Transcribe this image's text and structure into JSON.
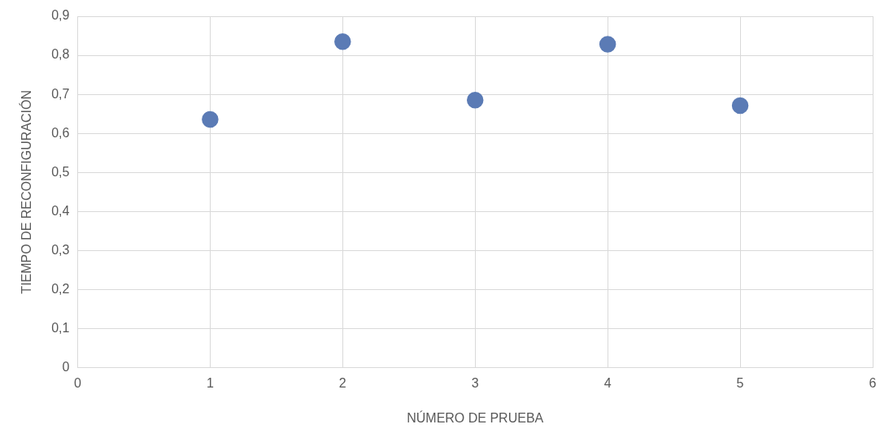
{
  "chart_data": {
    "type": "scatter",
    "xlabel": "NÚMERO DE PRUEBA",
    "ylabel": "TIEMPO DE RECONFIGURACIÓN",
    "x": [
      1,
      2,
      3,
      4,
      5
    ],
    "series": [
      {
        "color": "#5b7bb5",
        "values": [
          0.636,
          0.835,
          0.685,
          0.828,
          0.671
        ]
      }
    ],
    "xlim": [
      0,
      6
    ],
    "xticks": [
      0,
      1,
      2,
      3,
      4,
      5,
      6
    ],
    "ylim": [
      0,
      0.9
    ],
    "yticks": [
      {
        "value": 0,
        "label": "0"
      },
      {
        "value": 0.1,
        "label": "0,1"
      },
      {
        "value": 0.2,
        "label": "0,2"
      },
      {
        "value": 0.3,
        "label": "0,3"
      },
      {
        "value": 0.4,
        "label": "0,4"
      },
      {
        "value": 0.5,
        "label": "0,5"
      },
      {
        "value": 0.6,
        "label": "0,6"
      },
      {
        "value": 0.7,
        "label": "0,7"
      },
      {
        "value": 0.8,
        "label": "0,8"
      },
      {
        "value": 0.9,
        "label": "0,9"
      }
    ],
    "grid": true,
    "legend": false,
    "marker": "circle"
  }
}
